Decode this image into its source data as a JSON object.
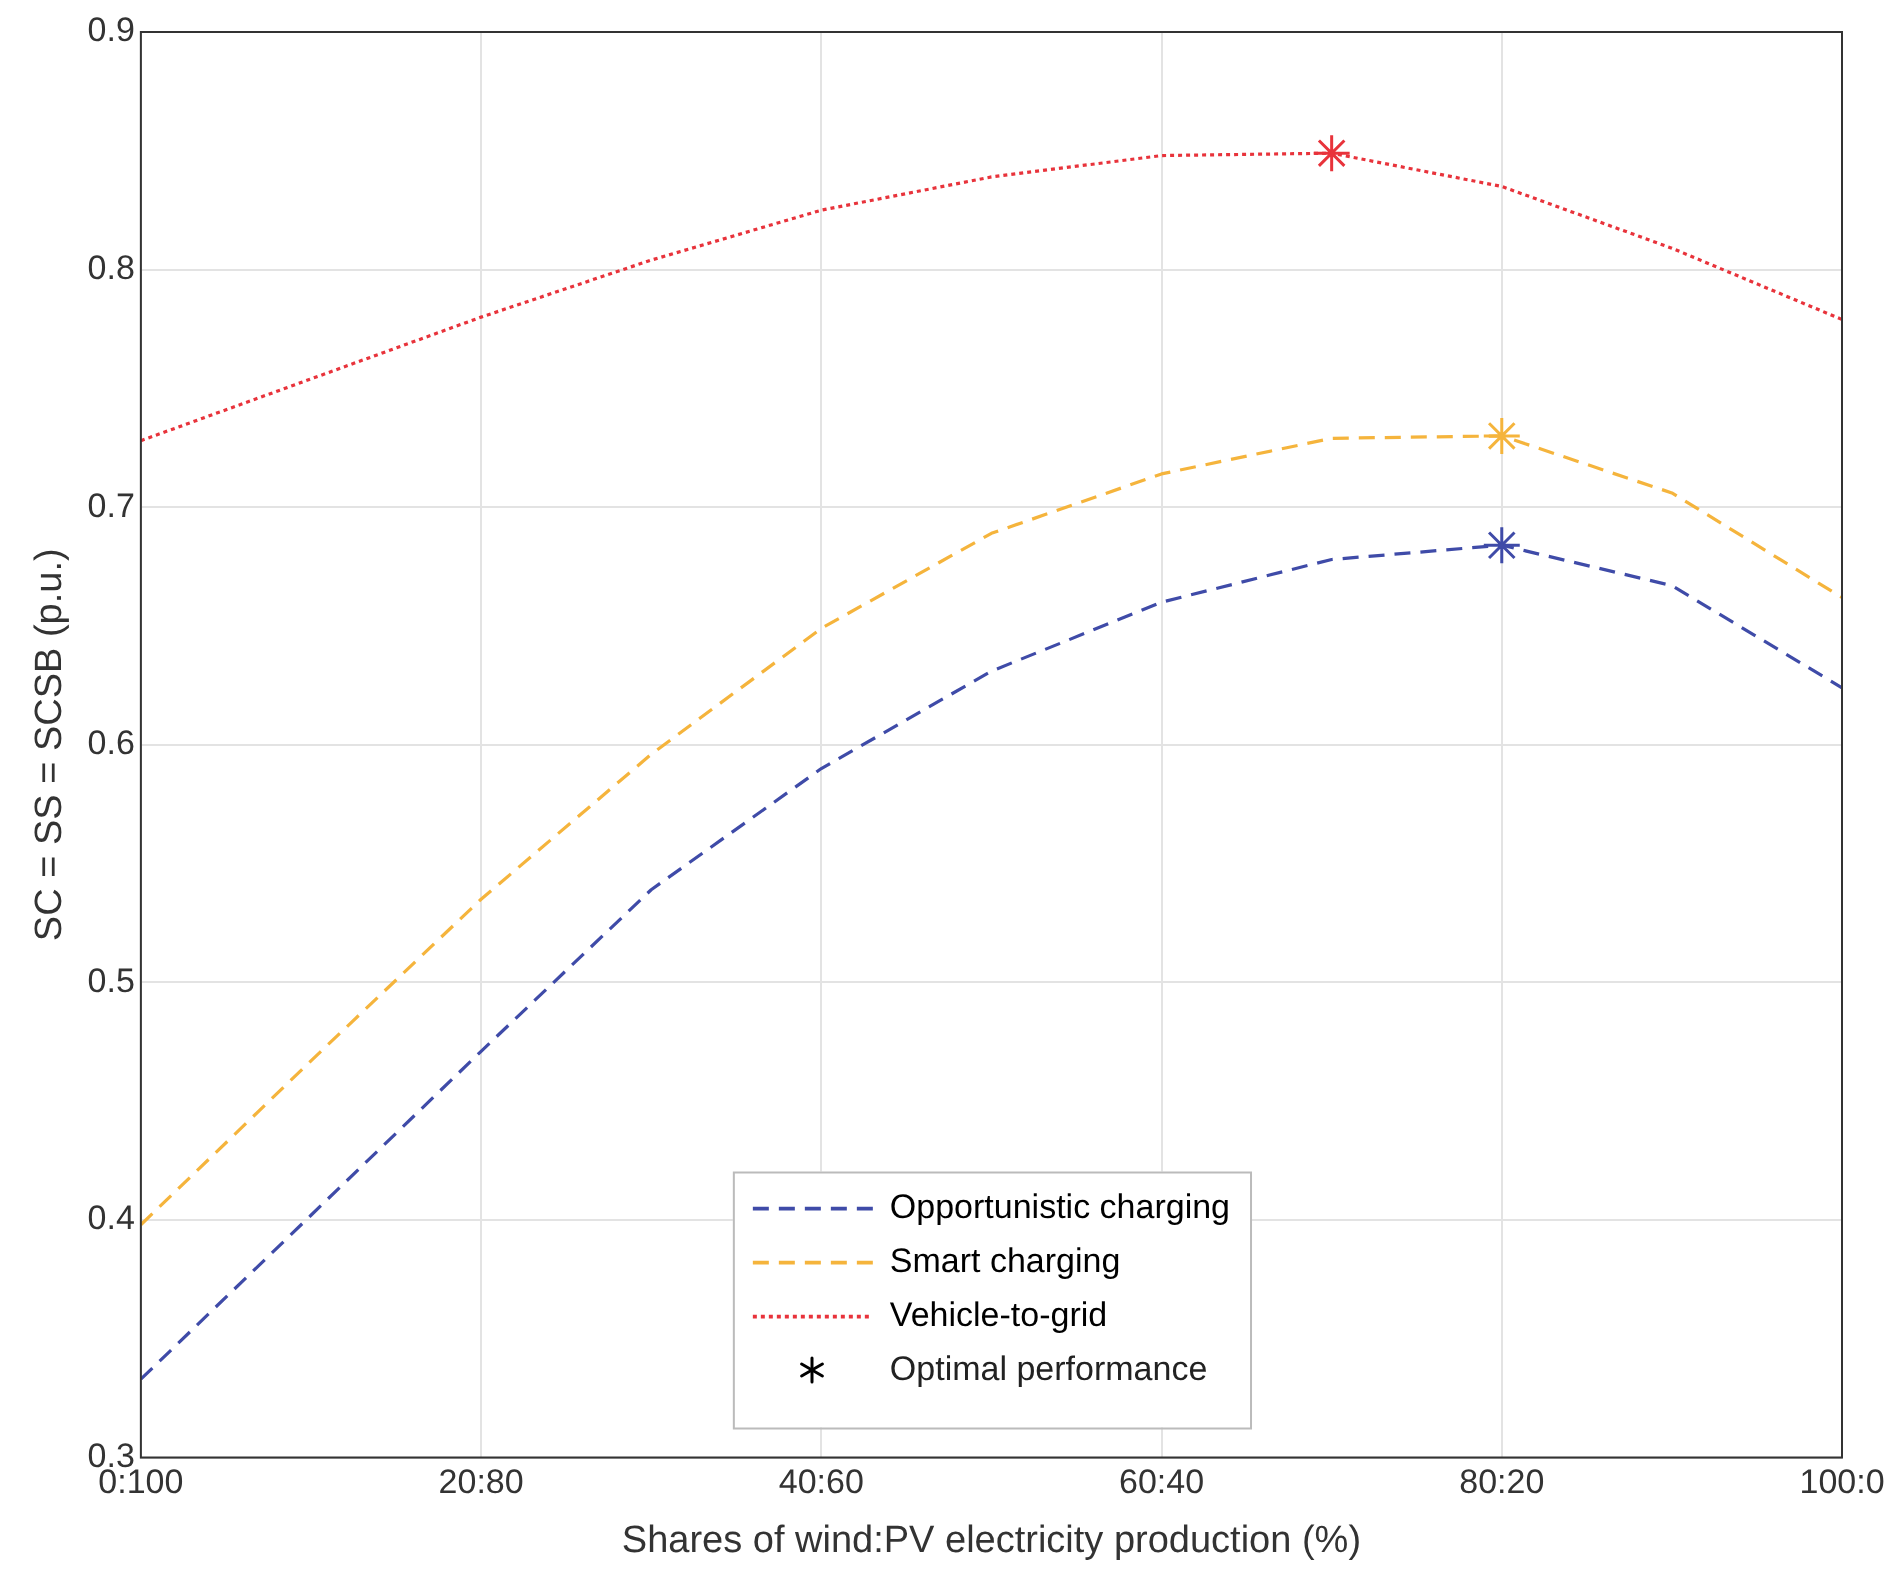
{
  "chart_data": {
    "type": "line",
    "xlabel": "Shares of wind:PV electricity production (%)",
    "ylabel": "SC = SS = SCSB (p.u.)",
    "categories": [
      "0:100",
      null,
      "20:80",
      null,
      "40:60",
      null,
      "60:40",
      null,
      "80:20",
      null,
      "100:0"
    ],
    "series": [
      {
        "name": "Opportunistic charging",
        "color": "#3f4ba8",
        "line_style": "dashed",
        "marker": "none",
        "values": [
          0.333,
          0.402,
          0.471,
          0.539,
          0.59,
          0.631,
          0.66,
          0.678,
          0.684,
          0.667,
          0.624
        ]
      },
      {
        "name": "Smart charging",
        "color": "#f5b43c",
        "line_style": "dashed",
        "marker": "none",
        "values": [
          0.398,
          0.467,
          0.535,
          0.596,
          0.649,
          0.689,
          0.714,
          0.729,
          0.73,
          0.706,
          0.662
        ]
      },
      {
        "name": "Vehicle-to-grid",
        "color": "#e8333b",
        "line_style": "dotted",
        "marker": "none",
        "values": [
          0.728,
          0.754,
          0.78,
          0.804,
          0.825,
          0.839,
          0.848,
          0.849,
          0.835,
          0.809,
          0.779
        ]
      },
      {
        "type": "scatter",
        "marker": "cross",
        "color": "#3f4ba8",
        "colors": [
          null,
          null,
          null,
          null,
          null,
          null,
          null,
          "#e8333b",
          "#3f4ba8",
          null,
          null
        ],
        "values": [
          null,
          null,
          null,
          null,
          null,
          null,
          null,
          0.849,
          0.684,
          null,
          null
        ]
      },
      {
        "type": "scatter",
        "marker": "cross",
        "color": "#f5b43c",
        "values": [
          null,
          null,
          null,
          null,
          null,
          null,
          null,
          null,
          0.73,
          null,
          null
        ]
      }
    ],
    "ylim": [
      0.3,
      0.9
    ],
    "yticks": [
      0.3,
      0.4,
      0.5,
      0.6,
      0.7,
      0.8,
      0.9
    ],
    "annotations": [
      "Optimal performance"
    ],
    "grid": true,
    "legend": "bottom"
  }
}
